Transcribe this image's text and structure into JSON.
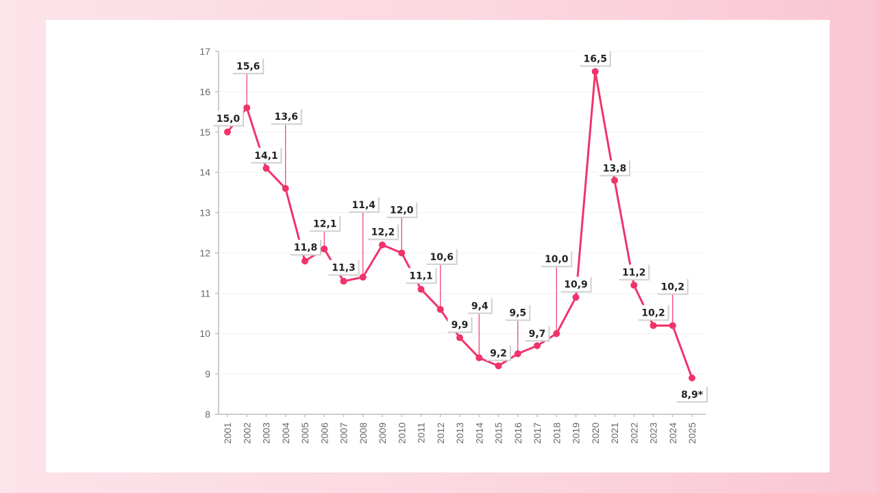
{
  "chart_data": {
    "type": "line",
    "title": "",
    "xlabel": "",
    "ylabel": "",
    "categories": [
      "2001",
      "2002",
      "2003",
      "2004",
      "2005",
      "2006",
      "2007",
      "2008",
      "2009",
      "2010",
      "2011",
      "2012",
      "2013",
      "2014",
      "2015",
      "2016",
      "2017",
      "2018",
      "2019",
      "2020",
      "2021",
      "2022",
      "2023",
      "2024",
      "2025"
    ],
    "values": [
      15.0,
      15.6,
      14.1,
      13.6,
      11.8,
      12.1,
      11.3,
      11.4,
      12.2,
      12.0,
      11.1,
      10.6,
      9.9,
      9.4,
      9.2,
      9.5,
      9.7,
      10.0,
      10.9,
      16.5,
      13.8,
      11.2,
      10.2,
      10.2,
      8.9
    ],
    "data_labels": [
      "15,0",
      "15,6",
      "14,1",
      "13,6",
      "11,8",
      "12,1",
      "11,3",
      "11,4",
      "12,2",
      "12,0",
      "11,1",
      "10,6",
      "9,9",
      "9,4",
      "9,2",
      "9,5",
      "9,7",
      "10,0",
      "10,9",
      "16,5",
      "13,8",
      "11,2",
      "10,2",
      "10,2",
      "8,9*"
    ],
    "ylim": [
      8,
      17
    ],
    "yticks": [
      "8",
      "9",
      "10",
      "11",
      "12",
      "13",
      "14",
      "15",
      "16",
      "17"
    ],
    "grid": true,
    "colors": {
      "line": "#f0336a",
      "grid": "#f1f1f1",
      "axis": "#cccccc"
    }
  }
}
